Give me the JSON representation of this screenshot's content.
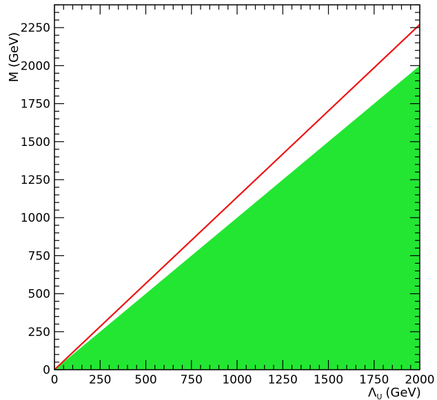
{
  "chart_data": {
    "type": "area",
    "xlabel_symbol": "Λ",
    "xlabel_subscript": "U",
    "xlabel_unit": "(GeV)",
    "ylabel": "M (GeV)",
    "xlim": [
      0,
      2000
    ],
    "ylim": [
      0,
      2400
    ],
    "xticks": [
      0,
      250,
      500,
      750,
      1000,
      1250,
      1500,
      1750,
      2000
    ],
    "yticks": [
      0,
      250,
      500,
      750,
      1000,
      1250,
      1500,
      1750,
      2000,
      2250
    ],
    "series": [
      {
        "kind": "area",
        "color": "#22e632",
        "x": [
          0,
          2000
        ],
        "y": [
          0,
          2000
        ]
      },
      {
        "kind": "line",
        "color": "#ee1111",
        "x": [
          0,
          2000
        ],
        "y": [
          0,
          2270
        ]
      }
    ],
    "grid": false
  }
}
